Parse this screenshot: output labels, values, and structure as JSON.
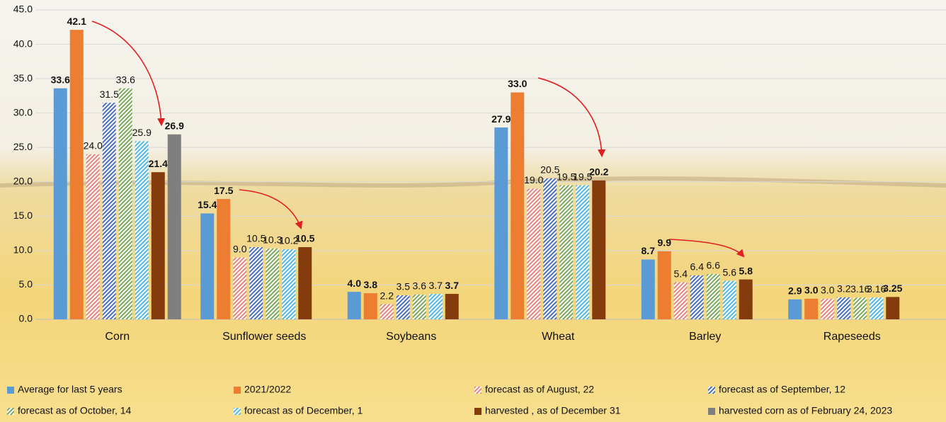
{
  "chart_data": {
    "type": "bar",
    "categories": [
      "Corn",
      "Sunflower seeds",
      "Soybeans",
      "Wheat",
      "Barley",
      "Rapeseeds"
    ],
    "ylim": [
      0,
      45
    ],
    "yticks": [
      {
        "value": 0,
        "label": "0.0"
      },
      {
        "value": 5,
        "label": "5.0"
      },
      {
        "value": 10,
        "label": "10.0"
      },
      {
        "value": 15,
        "label": "15.0"
      },
      {
        "value": 20,
        "label": "20.0"
      },
      {
        "value": 25,
        "label": "25.0"
      },
      {
        "value": 30,
        "label": "30.0"
      },
      {
        "value": 35,
        "label": "35.0"
      },
      {
        "value": 40,
        "label": "40.0"
      },
      {
        "value": 45,
        "label": "45.0"
      }
    ],
    "grid": true,
    "legend": "bottom",
    "series": [
      {
        "name": "Average for last 5 years",
        "color": "#5b9bd5",
        "hatched": false,
        "bold_labels": true,
        "values": [
          33.6,
          15.4,
          4.0,
          27.9,
          8.7,
          2.9
        ],
        "value_labels": [
          "33.6",
          "15.4",
          "4.0",
          "27.9",
          "8.7",
          "2.9"
        ]
      },
      {
        "name": "2021/2022",
        "color": "#ed7d31",
        "hatched": false,
        "bold_labels": true,
        "values": [
          42.1,
          17.5,
          3.8,
          33.0,
          9.9,
          3.0
        ],
        "value_labels": [
          "42.1",
          "17.5",
          "3.8",
          "33.0",
          "9.9",
          "3.0"
        ]
      },
      {
        "name": "forecast as of August, 22",
        "color": "#e8837c",
        "hatched": true,
        "bold_labels": false,
        "values": [
          24.0,
          9.0,
          2.2,
          19.0,
          5.4,
          3.0
        ],
        "value_labels": [
          "24.0",
          "9.0",
          "2.2",
          "19.0",
          "5.4",
          "3.0"
        ]
      },
      {
        "name": "forecast as of September, 12",
        "color": "#4a6fc0",
        "hatched": true,
        "bold_labels": false,
        "values": [
          31.5,
          10.5,
          3.5,
          20.5,
          6.4,
          3.2
        ],
        "value_labels": [
          "31.5",
          "10.5",
          "3.5",
          "20.5",
          "6.4",
          "3.2"
        ]
      },
      {
        "name": "forecast as of October, 14",
        "color": "#7aa95a",
        "hatched": true,
        "bold_labels": false,
        "values": [
          33.6,
          10.3,
          3.6,
          19.5,
          6.6,
          3.16
        ],
        "value_labels": [
          "33.6",
          "10.3",
          "3.6",
          "19.5",
          "6.6",
          "3.16"
        ]
      },
      {
        "name": "forecast as of December, 1",
        "color": "#4fb8e6",
        "hatched": true,
        "bold_labels": false,
        "values": [
          25.9,
          10.2,
          3.7,
          19.5,
          5.6,
          3.16
        ],
        "value_labels": [
          "25.9",
          "10.2",
          "3.7",
          "19.5",
          "5.6",
          "3.16"
        ]
      },
      {
        "name": "harvested , as of December 31",
        "color": "#843c0c",
        "hatched": false,
        "bold_labels": true,
        "values": [
          21.4,
          10.5,
          3.7,
          20.2,
          5.8,
          3.25
        ],
        "value_labels": [
          "21.4",
          "10.5",
          "3.7",
          "20.2",
          "5.8",
          "3.25"
        ]
      },
      {
        "name": "harvested corn as of February 24, 2023",
        "color": "#7f7f7f",
        "hatched": false,
        "bold_labels": true,
        "values": [
          26.9,
          null,
          null,
          null,
          null,
          null
        ],
        "value_labels": [
          "26.9",
          null,
          null,
          null,
          null,
          null
        ]
      }
    ]
  }
}
